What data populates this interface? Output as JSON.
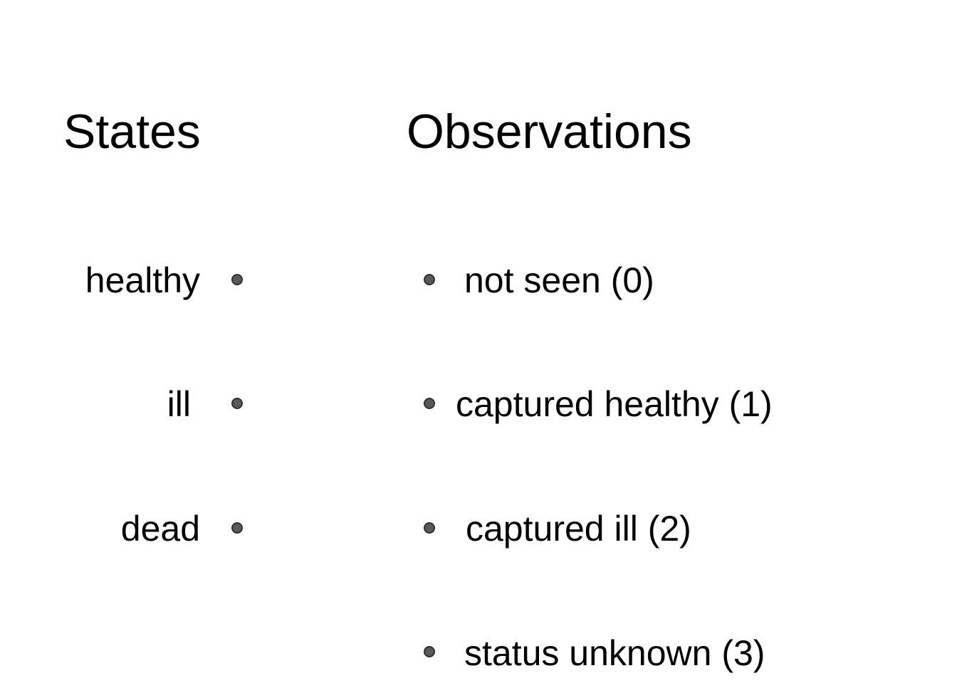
{
  "headings": {
    "states": "States",
    "observations": "Observations"
  },
  "states": [
    {
      "label": "healthy"
    },
    {
      "label": "ill"
    },
    {
      "label": "dead"
    }
  ],
  "observations": [
    {
      "label": "not seen (0)"
    },
    {
      "label": "captured healthy (1)"
    },
    {
      "label": "captured ill (2)"
    },
    {
      "label": "status unknown (3)"
    }
  ],
  "colors": {
    "text": "#000000",
    "dot_fill": "#595959",
    "dot_border": "#303030",
    "background": "#ffffff"
  }
}
